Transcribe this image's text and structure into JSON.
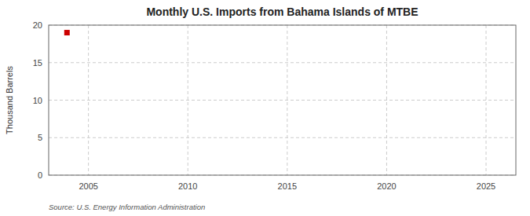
{
  "chart_data": {
    "type": "scatter",
    "title": "Monthly U.S. Imports from Bahama Islands of MTBE",
    "ylabel": "Thousand Barrels",
    "source": "Source: U.S. Energy Information Administration",
    "x": [
      2003.92
    ],
    "values": [
      19.0
    ],
    "color": "#cc0000",
    "marker": "square",
    "xlim": [
      2003.0,
      2026.5
    ],
    "ylim": [
      0,
      20
    ],
    "xticks": [
      2005,
      2010,
      2015,
      2020,
      2025
    ],
    "yticks": [
      0,
      5,
      10,
      15,
      20
    ],
    "grid": true
  }
}
